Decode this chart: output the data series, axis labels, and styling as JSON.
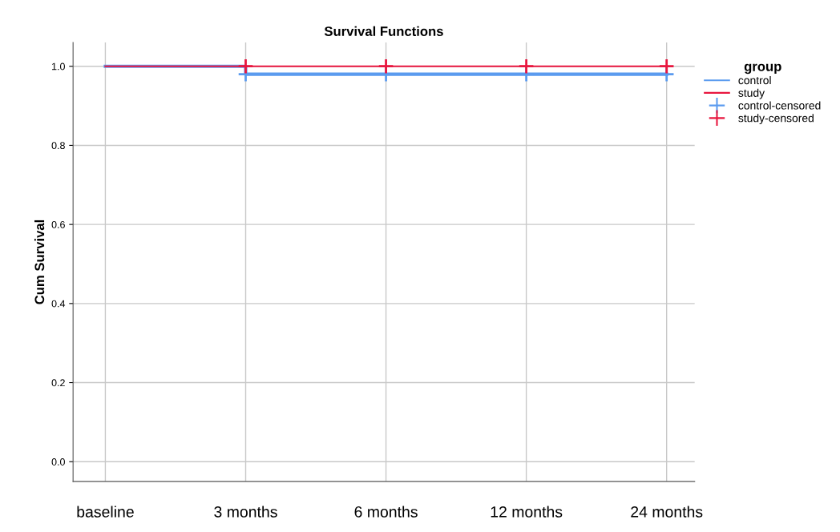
{
  "chart_data": {
    "type": "step",
    "title": "Survival Functions",
    "ylabel": "Cum Survival",
    "legend_title": "group",
    "categories": [
      "baseline",
      "3 months",
      "6 months",
      "12 months",
      "24 months"
    ],
    "series": [
      {
        "name": "control",
        "color": "#5b9bef",
        "values": [
          1.0,
          0.98,
          0.98,
          0.98,
          0.98
        ]
      },
      {
        "name": "study",
        "color": "#e8173f",
        "values": [
          1.0,
          1.0,
          1.0,
          1.0,
          1.0
        ]
      },
      {
        "name": "control-censored",
        "type": "scatter",
        "marker": "cross",
        "color": "#5b9bef",
        "values": [
          null,
          0.98,
          0.98,
          0.98,
          0.98
        ]
      },
      {
        "name": "study-censored",
        "type": "scatter",
        "marker": "cross",
        "color": "#e8173f",
        "values": [
          null,
          1.0,
          1.0,
          1.0,
          1.0
        ]
      }
    ],
    "ylim": [
      -0.05,
      1.06
    ],
    "yticks": [
      {
        "value": 0,
        "label": "0.0"
      },
      {
        "value": 0.2,
        "label": "0.2"
      },
      {
        "value": 0.4,
        "label": "0.4"
      },
      {
        "value": 0.6,
        "label": "0.6"
      },
      {
        "value": 0.8,
        "label": "0.8"
      },
      {
        "value": 1.0,
        "label": "1.0"
      }
    ],
    "grid": true,
    "legend": "top right"
  }
}
